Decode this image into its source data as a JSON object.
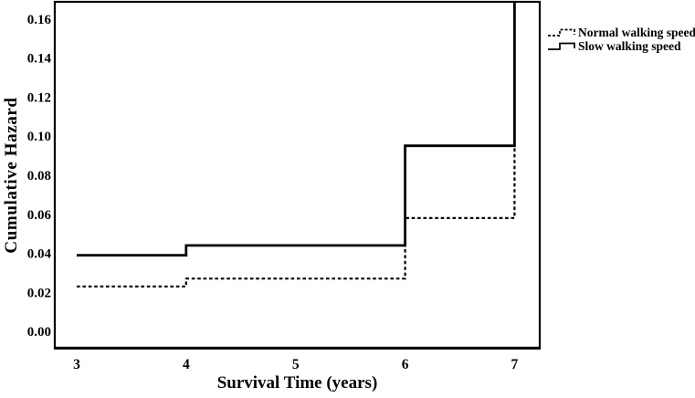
{
  "window": {
    "background": "#ffffff",
    "foreground": "#000000"
  },
  "chart_data": {
    "type": "line",
    "subtype": "step",
    "title": "",
    "xlabel": "Survival Time (years)",
    "ylabel": "Cumulative Hazard",
    "xlim": [
      2.8,
      7.23
    ],
    "ylim": [
      -0.0084,
      0.1687
    ],
    "grid": false,
    "legend_position": "outside-top-right",
    "line_color": "#000000",
    "x_ticks": {
      "values": [
        3,
        4,
        5,
        6,
        7
      ],
      "labels": [
        "3",
        "4",
        "5",
        "6",
        "7"
      ]
    },
    "y_ticks": {
      "values": [
        0.0,
        0.02,
        0.04,
        0.06,
        0.08,
        0.1,
        0.12,
        0.14,
        0.16
      ],
      "labels": [
        "0.00",
        "0.02",
        "0.04",
        "0.06",
        "0.08",
        "0.10",
        "0.12",
        "0.14",
        "0.16"
      ]
    },
    "series": [
      {
        "name": "Normal walking speed",
        "style": "dashed",
        "points": [
          [
            3,
            0.023
          ],
          [
            4,
            0.023
          ],
          [
            4,
            0.027
          ],
          [
            6,
            0.027
          ],
          [
            6,
            0.058
          ],
          [
            7,
            0.058
          ],
          [
            7,
            0.1687
          ]
        ],
        "note": "final rise at x=7 clipped at plot top"
      },
      {
        "name": "Slow walking speed",
        "style": "solid",
        "points": [
          [
            3,
            0.039
          ],
          [
            4,
            0.039
          ],
          [
            4,
            0.044
          ],
          [
            6,
            0.044
          ],
          [
            6,
            0.095
          ],
          [
            7,
            0.095
          ],
          [
            7,
            0.1687
          ]
        ],
        "note": "final rise at x=7 clipped at plot top"
      }
    ]
  },
  "legend": {
    "items": [
      {
        "label": "Normal walking speed",
        "style": "dashed"
      },
      {
        "label": "Slow walking speed",
        "style": "solid"
      }
    ]
  }
}
